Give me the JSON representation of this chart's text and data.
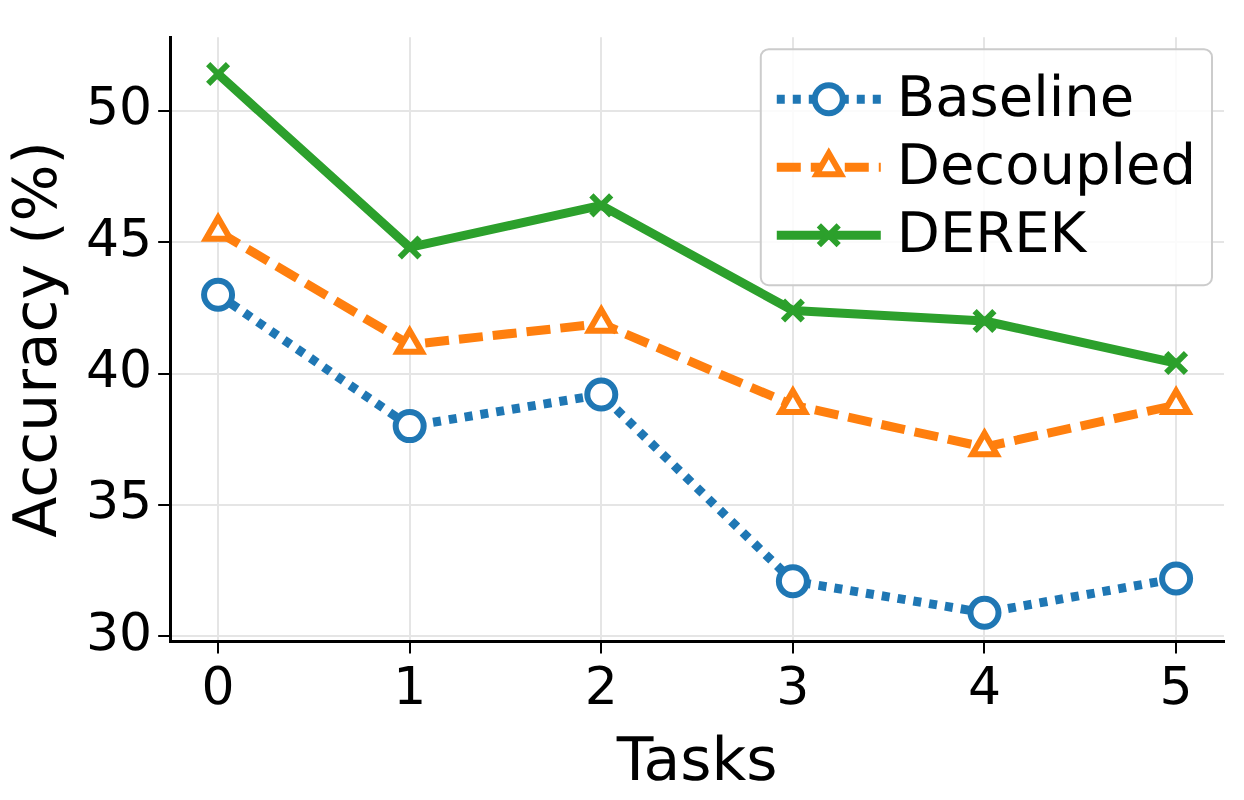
{
  "chart_data": {
    "type": "line",
    "xlabel": "Tasks",
    "ylabel": "Accuracy (%)",
    "x": [
      0,
      1,
      2,
      3,
      4,
      5
    ],
    "xlim": [
      -0.25,
      5.25
    ],
    "xticks": [
      0,
      1,
      2,
      3,
      4,
      5
    ],
    "ylim": [
      29.8,
      52.8
    ],
    "yticks": [
      30,
      35,
      40,
      45,
      50
    ],
    "grid": true,
    "legend": "top right",
    "series": [
      {
        "name": "Baseline",
        "color": "#1f77b4",
        "marker": "circle",
        "line_style": "dotted",
        "values": [
          43.0,
          38.0,
          39.2,
          32.1,
          30.9,
          32.2
        ]
      },
      {
        "name": "Decoupled",
        "color": "#ff7f0e",
        "marker": "triangle",
        "line_style": "dashed",
        "values": [
          45.4,
          41.1,
          41.9,
          38.8,
          37.2,
          38.8
        ]
      },
      {
        "name": "DEREK",
        "color": "#2ca02c",
        "marker": "cross",
        "line_style": "solid",
        "values": [
          51.4,
          44.8,
          46.4,
          42.4,
          42.0,
          40.4
        ]
      }
    ]
  }
}
